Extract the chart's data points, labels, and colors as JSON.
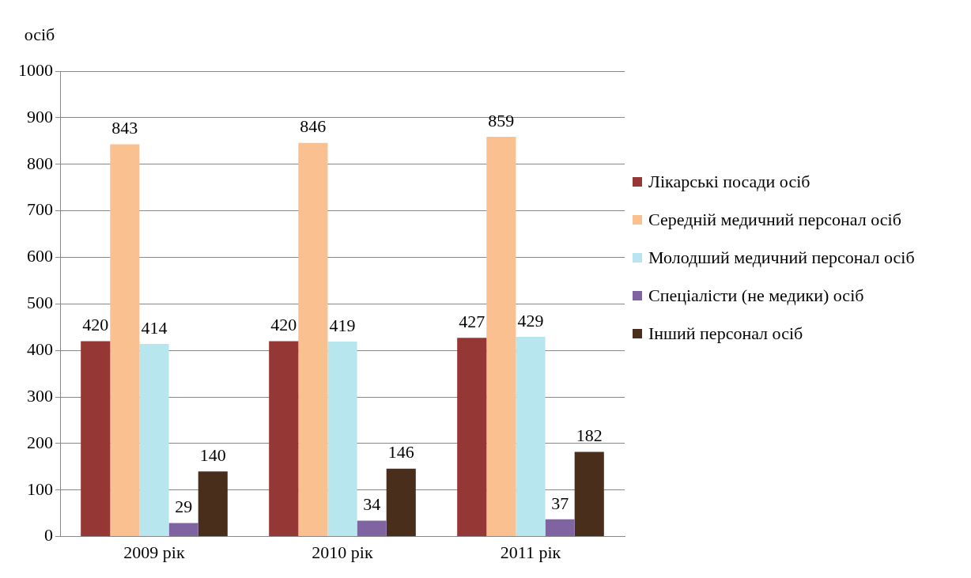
{
  "chart_data": {
    "type": "bar",
    "ylabel": "осіб",
    "categories": [
      "2009 рік",
      "2010 рік",
      "2011 рік"
    ],
    "series": [
      {
        "name": "Лікарські посади осіб",
        "color": "#953735",
        "values": [
          420,
          420,
          427
        ]
      },
      {
        "name": "Середній медичний персонал осіб",
        "color": "#fac090",
        "values": [
          843,
          846,
          859
        ]
      },
      {
        "name": "Молодший медичний персонал осіб",
        "color": "#b7e6ee",
        "values": [
          414,
          419,
          429
        ]
      },
      {
        "name": "Спеціалісти (не медики)  осіб",
        "color": "#8064a2",
        "values": [
          29,
          34,
          37
        ]
      },
      {
        "name": "Інший персонал осіб",
        "color": "#4a2e1c",
        "values": [
          140,
          146,
          182
        ]
      }
    ],
    "ylim": [
      0,
      1000
    ],
    "yticks": [
      0,
      100,
      200,
      300,
      400,
      500,
      600,
      700,
      800,
      900,
      1000
    ],
    "grid": "y",
    "legend": "right",
    "data_labels": true
  }
}
